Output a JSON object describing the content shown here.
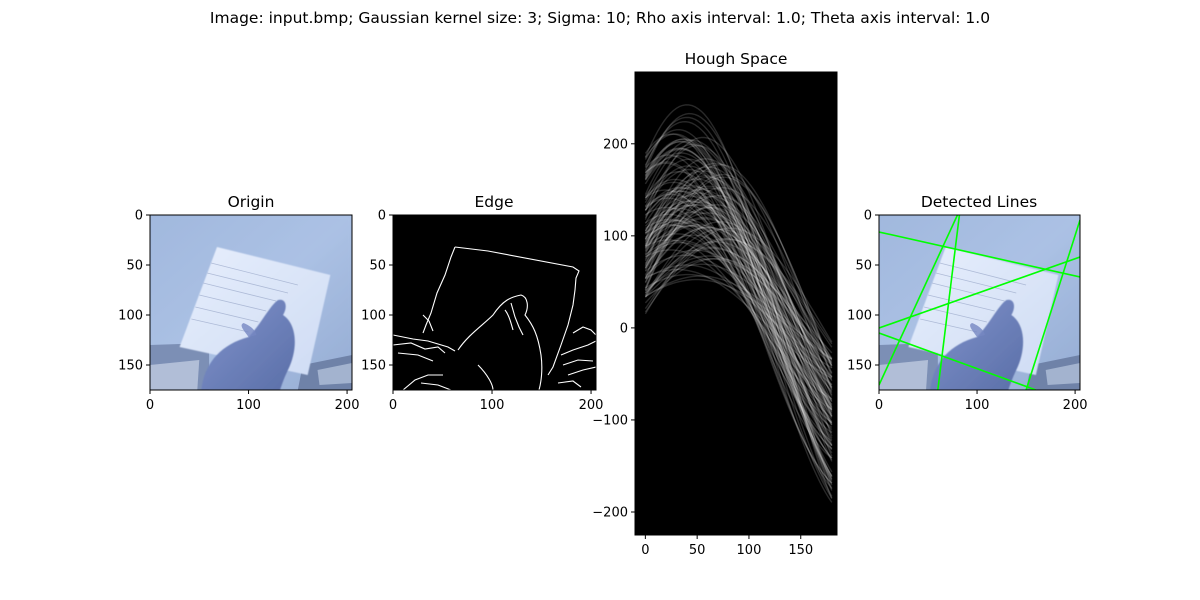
{
  "figure": {
    "suptitle": "Image: input.bmp; Gaussian kernel size: 3; Sigma: 10; Rho axis interval: 1.0; Theta axis interval: 1.0",
    "background": "#ffffff"
  },
  "chart_data": [
    {
      "type": "image",
      "title": "Origin",
      "xlabel": "",
      "ylabel": "",
      "xlim": [
        0,
        205
      ],
      "ylim": [
        175,
        0
      ],
      "xticks": [
        0,
        100,
        200
      ],
      "yticks": [
        0,
        50,
        100,
        150
      ],
      "content": "photo-of-hand-holding-paper"
    },
    {
      "type": "image",
      "title": "Edge",
      "xlabel": "",
      "ylabel": "",
      "xlim": [
        0,
        205
      ],
      "ylim": [
        175,
        0
      ],
      "xticks": [
        0,
        100,
        200
      ],
      "yticks": [
        0,
        50,
        100,
        150
      ],
      "content": "canny-edge-map",
      "colors": {
        "background": "#000000",
        "edges": "#ffffff"
      }
    },
    {
      "type": "heatmap",
      "title": "Hough Space",
      "xlabel": "",
      "ylabel": "",
      "xlim": [
        -10,
        185
      ],
      "ylim": [
        -225,
        278
      ],
      "xticks": [
        0,
        50,
        100,
        150
      ],
      "yticks": [
        -200,
        -100,
        0,
        100,
        200
      ],
      "content": "hough-accumulator-sinusoids",
      "colors": {
        "background": "#000000",
        "curves": "#ffffff"
      }
    },
    {
      "type": "image",
      "title": "Detected Lines",
      "xlabel": "",
      "ylabel": "",
      "xlim": [
        0,
        205
      ],
      "ylim": [
        175,
        0
      ],
      "xticks": [
        0,
        100,
        200
      ],
      "yticks": [
        0,
        50,
        100,
        150
      ],
      "content": "photo-with-detected-lines",
      "line_color": "#00ff00",
      "lines": [
        [
          [
            0,
            17
          ],
          [
            205,
            62
          ]
        ],
        [
          [
            60,
            175
          ],
          [
            82,
            0
          ]
        ],
        [
          [
            0,
            170
          ],
          [
            80,
            0
          ]
        ],
        [
          [
            150,
            175
          ],
          [
            205,
            5
          ]
        ],
        [
          [
            0,
            113
          ],
          [
            205,
            42
          ]
        ],
        [
          [
            0,
            118
          ],
          [
            160,
            175
          ]
        ]
      ]
    }
  ]
}
